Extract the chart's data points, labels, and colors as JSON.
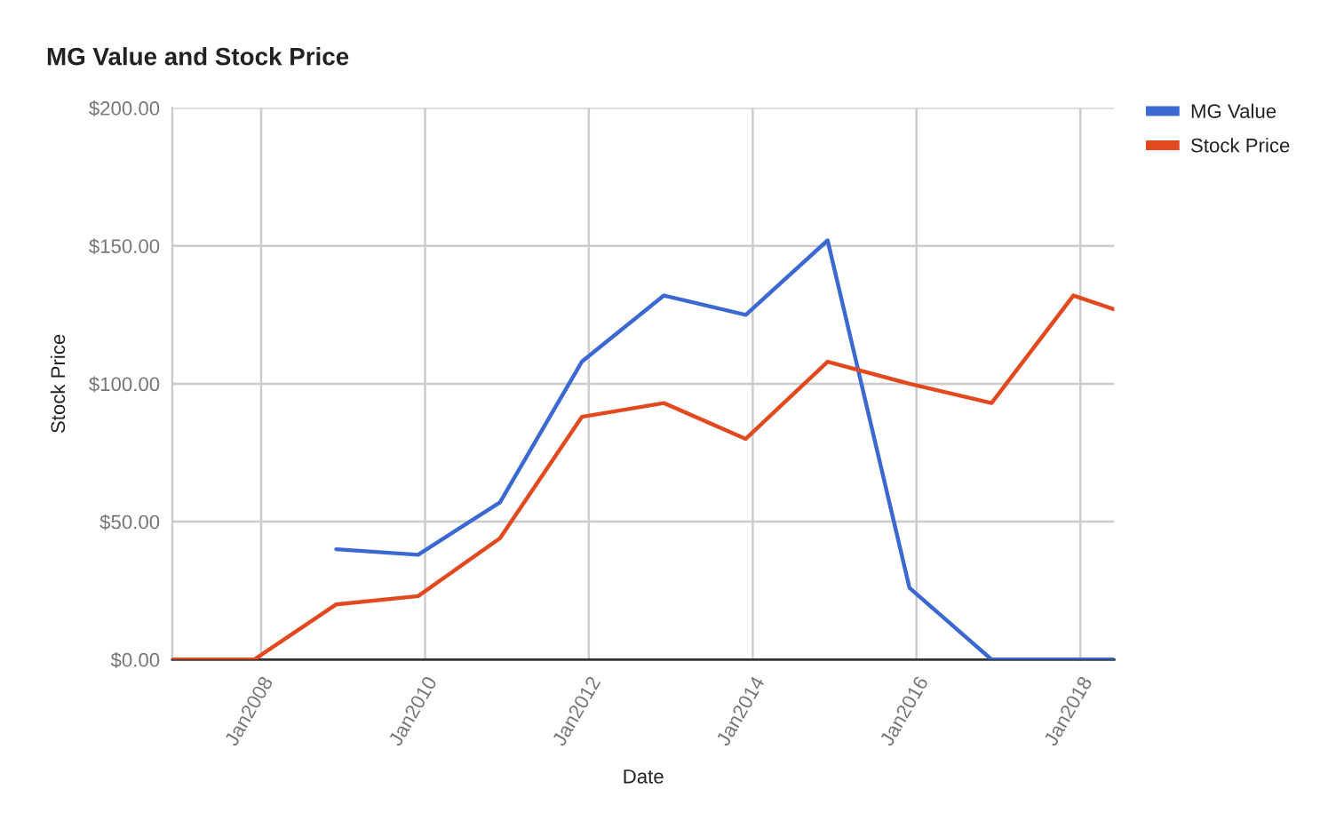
{
  "chart_data": {
    "type": "line",
    "title": "MG Value and Stock Price",
    "xlabel": "Date",
    "ylabel": "Stock Price",
    "series": [
      {
        "name": "MG Value",
        "color": "#3c69d1",
        "x": [
          "2008-12",
          "2009-12",
          "2010-12",
          "2011-12",
          "2012-12",
          "2013-12",
          "2014-12",
          "2015-12",
          "2016-12",
          "2017-12",
          "2018-06"
        ],
        "values": [
          40,
          38,
          57,
          108,
          132,
          125,
          152,
          26,
          0,
          0,
          0
        ]
      },
      {
        "name": "Stock Price",
        "color": "#e3491e",
        "x": [
          "2006-12",
          "2007-12",
          "2008-12",
          "2009-12",
          "2010-12",
          "2011-12",
          "2012-12",
          "2013-12",
          "2014-12",
          "2015-12",
          "2016-12",
          "2017-12",
          "2018-06"
        ],
        "values": [
          0,
          0,
          20,
          23,
          44,
          88,
          93,
          80,
          108,
          100,
          93,
          132,
          127
        ]
      }
    ],
    "xlim": [
      "2006-12",
      "2018-06"
    ],
    "xticks": [
      {
        "value": "2008-01",
        "label": "Jan2008"
      },
      {
        "value": "2010-01",
        "label": "Jan2010"
      },
      {
        "value": "2012-01",
        "label": "Jan2012"
      },
      {
        "value": "2014-01",
        "label": "Jan2014"
      },
      {
        "value": "2016-01",
        "label": "Jan2016"
      },
      {
        "value": "2018-01",
        "label": "Jan2018"
      }
    ],
    "ylim": [
      0,
      200
    ],
    "yticks": [
      {
        "value": 0,
        "label": "$0.00"
      },
      {
        "value": 50,
        "label": "$50.00"
      },
      {
        "value": 100,
        "label": "$100.00"
      },
      {
        "value": 150,
        "label": "$150.00"
      },
      {
        "value": 200,
        "label": "$200.00"
      }
    ],
    "grid": true,
    "legend": "top right"
  }
}
